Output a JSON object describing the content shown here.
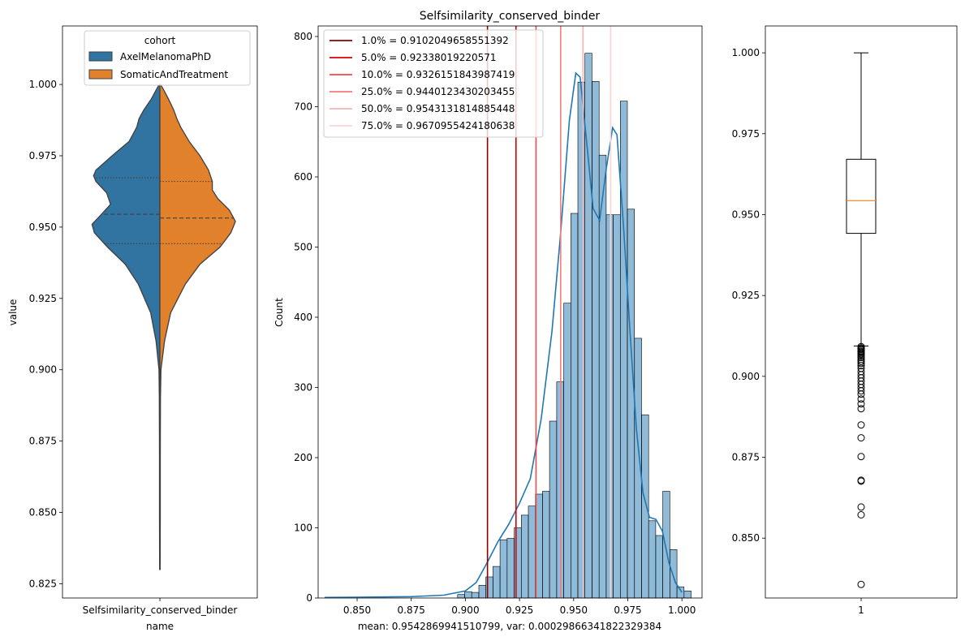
{
  "chart_data": [
    {
      "type": "violin",
      "xlabel": "name",
      "ylabel": "value",
      "categories": [
        "Selfsimilarity_conserved_binder"
      ],
      "ylim": [
        0.82,
        1.0205
      ],
      "yticks": [
        0.825,
        0.85,
        0.875,
        0.9,
        0.925,
        0.95,
        0.975,
        1.0
      ],
      "ytick_labels": [
        "0.825",
        "0.850",
        "0.875",
        "0.900",
        "0.925",
        "0.950",
        "0.975",
        "1.000"
      ],
      "legend": {
        "title": "cohort",
        "placement": "top-center",
        "entries": [
          {
            "label": "AxelMelanomaPhD",
            "color": "#1f77b4"
          },
          {
            "label": "SomaticAndTreatment",
            "color": "#ff7f0e"
          }
        ]
      },
      "series": [
        {
          "name": "AxelMelanomaPhD",
          "side": "left",
          "color": "#3274a1",
          "quartiles": [
            0.9442,
            0.9545,
            0.9673
          ],
          "density": [
            [
              0.83,
              0.003
            ],
            [
              0.85,
              0.005
            ],
            [
              0.87,
              0.005
            ],
            [
              0.89,
              0.007
            ],
            [
              0.9,
              0.012
            ],
            [
              0.91,
              0.05
            ],
            [
              0.92,
              0.12
            ],
            [
              0.93,
              0.28
            ],
            [
              0.937,
              0.45
            ],
            [
              0.943,
              0.68
            ],
            [
              0.948,
              0.85
            ],
            [
              0.951,
              0.88
            ],
            [
              0.955,
              0.74
            ],
            [
              0.958,
              0.64
            ],
            [
              0.962,
              0.69
            ],
            [
              0.966,
              0.83
            ],
            [
              0.968,
              0.86
            ],
            [
              0.97,
              0.83
            ],
            [
              0.975,
              0.62
            ],
            [
              0.98,
              0.4
            ],
            [
              0.985,
              0.3
            ],
            [
              0.988,
              0.27
            ],
            [
              0.991,
              0.21
            ],
            [
              0.995,
              0.11
            ],
            [
              0.998,
              0.05
            ],
            [
              1.0,
              0.01
            ]
          ]
        },
        {
          "name": "SomaticAndTreatment",
          "side": "right",
          "color": "#e1812c",
          "quartiles": [
            0.9442,
            0.9532,
            0.966
          ],
          "density": [
            [
              0.83,
              0.003
            ],
            [
              0.85,
              0.005
            ],
            [
              0.87,
              0.005
            ],
            [
              0.89,
              0.007
            ],
            [
              0.9,
              0.014
            ],
            [
              0.91,
              0.06
            ],
            [
              0.92,
              0.14
            ],
            [
              0.93,
              0.33
            ],
            [
              0.937,
              0.52
            ],
            [
              0.943,
              0.78
            ],
            [
              0.948,
              0.92
            ],
            [
              0.952,
              0.98
            ],
            [
              0.956,
              0.9
            ],
            [
              0.96,
              0.75
            ],
            [
              0.963,
              0.68
            ],
            [
              0.966,
              0.68
            ],
            [
              0.97,
              0.63
            ],
            [
              0.975,
              0.52
            ],
            [
              0.98,
              0.38
            ],
            [
              0.985,
              0.27
            ],
            [
              0.988,
              0.22
            ],
            [
              0.991,
              0.18
            ],
            [
              0.995,
              0.11
            ],
            [
              0.998,
              0.05
            ],
            [
              1.0,
              0.01
            ]
          ]
        }
      ]
    },
    {
      "type": "histogram",
      "title": "Selfsimilarity_conserved_binder",
      "xlabel": "mean: 0.9542869941510799, var: 0.00029866341822329384",
      "ylabel": "Count",
      "xlim": [
        0.832,
        1.0093
      ],
      "ylim": [
        0,
        815
      ],
      "xticks": [
        0.85,
        0.875,
        0.9,
        0.925,
        0.95,
        0.975,
        1.0
      ],
      "xtick_labels": [
        "0.850",
        "0.875",
        "0.900",
        "0.925",
        "0.950",
        "0.975",
        "1.000"
      ],
      "yticks": [
        0,
        100,
        200,
        300,
        400,
        500,
        600,
        700,
        800
      ],
      "ytick_labels": [
        "0",
        "100",
        "200",
        "300",
        "400",
        "500",
        "600",
        "700",
        "800"
      ],
      "bar_color": "#1f77b4",
      "bins": {
        "edges_start": 0.8964,
        "bin_width": 0.003268,
        "counts": [
          5,
          9,
          8,
          18,
          30,
          45,
          83,
          85,
          100,
          118,
          131,
          148,
          152,
          252,
          308,
          420,
          548,
          735,
          776,
          736,
          631,
          546,
          546,
          708,
          554,
          370,
          261,
          110,
          89,
          152,
          69,
          16,
          10
        ]
      },
      "kde": [
        [
          0.835,
          0.8
        ],
        [
          0.85,
          1
        ],
        [
          0.875,
          2
        ],
        [
          0.89,
          4
        ],
        [
          0.9,
          10
        ],
        [
          0.905,
          22
        ],
        [
          0.91,
          50
        ],
        [
          0.915,
          80
        ],
        [
          0.92,
          105
        ],
        [
          0.925,
          135
        ],
        [
          0.93,
          170
        ],
        [
          0.935,
          255
        ],
        [
          0.94,
          380
        ],
        [
          0.944,
          520
        ],
        [
          0.948,
          680
        ],
        [
          0.951,
          748
        ],
        [
          0.953,
          742
        ],
        [
          0.956,
          650
        ],
        [
          0.959,
          555
        ],
        [
          0.962,
          538
        ],
        [
          0.965,
          610
        ],
        [
          0.968,
          670
        ],
        [
          0.97,
          660
        ],
        [
          0.973,
          530
        ],
        [
          0.976,
          380
        ],
        [
          0.979,
          240
        ],
        [
          0.982,
          150
        ],
        [
          0.985,
          115
        ],
        [
          0.988,
          112
        ],
        [
          0.991,
          95
        ],
        [
          0.994,
          50
        ],
        [
          0.997,
          22
        ],
        [
          1.0,
          8
        ]
      ],
      "legend": {
        "placement": "top-left",
        "entries": [
          {
            "label": "1.0% = 0.9102049658551392",
            "value": 0.9102049658551392,
            "color": "#8b0000"
          },
          {
            "label": "5.0% = 0.92338019220571",
            "value": 0.92338019220571,
            "color": "#d40000"
          },
          {
            "label": "10.0% = 0.9326151843987419",
            "value": 0.9326151843987419,
            "color": "#ef4a4a"
          },
          {
            "label": "25.0% = 0.9440123430203455",
            "value": 0.9440123430203455,
            "color": "#f47d7d"
          },
          {
            "label": "50.0% = 0.9543131814885448",
            "value": 0.9543131814885448,
            "color": "#f7b3b3"
          },
          {
            "label": "75.0% = 0.9670955424180638",
            "value": 0.9670955424180638,
            "color": "#fad4d4"
          }
        ]
      }
    },
    {
      "type": "box",
      "categories": [
        "1"
      ],
      "ylim": [
        0.8315,
        1.0083
      ],
      "yticks": [
        0.85,
        0.875,
        0.9,
        0.925,
        0.95,
        0.975,
        1.0
      ],
      "ytick_labels": [
        "0.850",
        "0.875",
        "0.900",
        "0.925",
        "0.950",
        "0.975",
        "1.000"
      ],
      "q1": 0.9442,
      "median": 0.9543,
      "q3": 0.9671,
      "whisker_low": 0.9094,
      "whisker_high": 1.0,
      "median_color": "#ff7f0e",
      "outliers": [
        0.9092,
        0.9088,
        0.9085,
        0.9082,
        0.9078,
        0.9075,
        0.9072,
        0.9068,
        0.9063,
        0.9058,
        0.9052,
        0.9046,
        0.904,
        0.9033,
        0.9025,
        0.9015,
        0.9005,
        0.8995,
        0.8985,
        0.8975,
        0.8965,
        0.8955,
        0.8945,
        0.893,
        0.8915,
        0.89,
        0.885,
        0.881,
        0.8752,
        0.8679,
        0.8676,
        0.8596,
        0.8572,
        0.8357
      ]
    }
  ]
}
